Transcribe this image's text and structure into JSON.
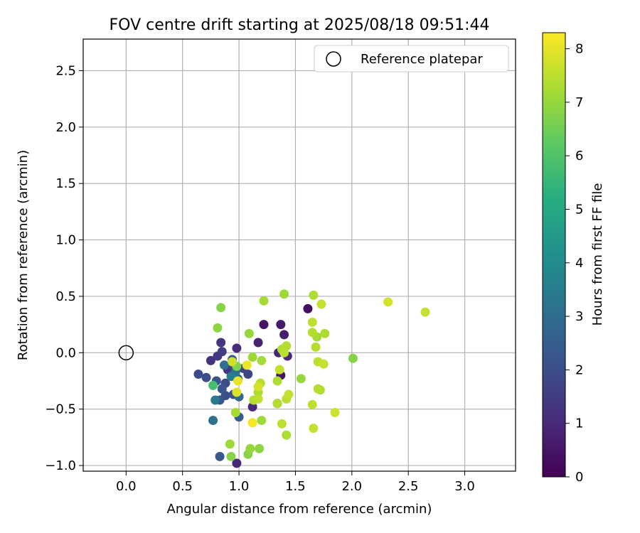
{
  "chart_data": {
    "type": "scatter",
    "title": "FOV centre drift starting at 2025/08/18 09:51:44",
    "xlabel": "Angular distance from reference (arcmin)",
    "ylabel": "Rotation from reference (arcmin)",
    "xlim": [
      -0.38,
      3.45
    ],
    "ylim": [
      -1.05,
      2.78
    ],
    "xticks": [
      0.0,
      0.5,
      1.0,
      1.5,
      2.0,
      2.5,
      3.0
    ],
    "xtick_labels": [
      "0.0",
      "0.5",
      "1.0",
      "1.5",
      "2.0",
      "2.5",
      "3.0"
    ],
    "yticks": [
      -1.0,
      -0.5,
      0.0,
      0.5,
      1.0,
      1.5,
      2.0,
      2.5
    ],
    "ytick_labels": [
      "−1.0",
      "−0.5",
      "0.0",
      "0.5",
      "1.0",
      "1.5",
      "2.0",
      "2.5"
    ],
    "grid": true,
    "legend": {
      "placement": "top-right",
      "entries": [
        {
          "label": "Reference platepar",
          "marker": "open-circle"
        }
      ]
    },
    "reference_point": {
      "x": 0.0,
      "y": 0.0
    },
    "colorbar": {
      "label": "Hours from first FF file",
      "colormap": "viridis",
      "range": [
        0,
        8.3
      ],
      "ticks": [
        0,
        1,
        2,
        3,
        4,
        5,
        6,
        7,
        8
      ],
      "tick_labels": [
        "0",
        "1",
        "2",
        "3",
        "4",
        "5",
        "6",
        "7",
        "8"
      ]
    },
    "points": [
      {
        "x": 1.61,
        "y": 0.39,
        "hours": 0.3
      },
      {
        "x": 1.22,
        "y": 0.25,
        "hours": 0.5
      },
      {
        "x": 1.37,
        "y": 0.25,
        "hours": 0.6
      },
      {
        "x": 1.4,
        "y": 0.16,
        "hours": 0.7
      },
      {
        "x": 1.17,
        "y": 0.09,
        "hours": 0.8
      },
      {
        "x": 1.35,
        "y": 0.0,
        "hours": 0.9
      },
      {
        "x": 1.43,
        "y": -0.03,
        "hours": 1.0
      },
      {
        "x": 1.37,
        "y": -0.2,
        "hours": 0.5
      },
      {
        "x": 1.34,
        "y": -0.45,
        "hours": 0.6
      },
      {
        "x": 0.98,
        "y": -0.98,
        "hours": 0.9
      },
      {
        "x": 1.12,
        "y": -0.48,
        "hours": 1.0
      },
      {
        "x": 0.98,
        "y": 0.04,
        "hours": 1.1
      },
      {
        "x": 0.84,
        "y": 0.09,
        "hours": 1.3
      },
      {
        "x": 0.85,
        "y": 0.01,
        "hours": 1.5
      },
      {
        "x": 0.81,
        "y": -0.03,
        "hours": 1.4
      },
      {
        "x": 0.75,
        "y": -0.07,
        "hours": 1.2
      },
      {
        "x": 0.9,
        "y": -0.15,
        "hours": 1.3
      },
      {
        "x": 0.95,
        "y": -0.13,
        "hours": 1.6
      },
      {
        "x": 1.04,
        "y": -0.14,
        "hours": 1.7
      },
      {
        "x": 1.08,
        "y": -0.19,
        "hours": 1.8
      },
      {
        "x": 0.64,
        "y": -0.19,
        "hours": 1.9
      },
      {
        "x": 0.71,
        "y": -0.22,
        "hours": 2.0
      },
      {
        "x": 0.8,
        "y": -0.25,
        "hours": 2.1
      },
      {
        "x": 0.88,
        "y": -0.27,
        "hours": 1.9
      },
      {
        "x": 0.85,
        "y": -0.32,
        "hours": 2.2
      },
      {
        "x": 0.88,
        "y": -0.38,
        "hours": 2.0
      },
      {
        "x": 0.95,
        "y": -0.37,
        "hours": 2.1
      },
      {
        "x": 0.83,
        "y": -0.42,
        "hours": 2.3
      },
      {
        "x": 0.94,
        "y": -0.06,
        "hours": 2.4
      },
      {
        "x": 0.99,
        "y": -0.23,
        "hours": 2.6
      },
      {
        "x": 1.0,
        "y": -0.39,
        "hours": 2.8
      },
      {
        "x": 1.0,
        "y": -0.57,
        "hours": 2.5
      },
      {
        "x": 0.87,
        "y": -0.11,
        "hours": 3.0
      },
      {
        "x": 0.97,
        "y": -0.17,
        "hours": 3.2
      },
      {
        "x": 0.79,
        "y": -0.42,
        "hours": 3.3
      },
      {
        "x": 0.77,
        "y": -0.6,
        "hours": 3.1
      },
      {
        "x": 0.93,
        "y": -0.21,
        "hours": 3.5
      },
      {
        "x": 0.83,
        "y": -0.92,
        "hours": 2.3
      },
      {
        "x": 0.77,
        "y": -0.29,
        "hours": 5.8
      },
      {
        "x": 0.84,
        "y": 0.4,
        "hours": 6.8
      },
      {
        "x": 0.81,
        "y": 0.22,
        "hours": 6.9
      },
      {
        "x": 0.98,
        "y": -0.12,
        "hours": 6.7
      },
      {
        "x": 0.92,
        "y": -0.81,
        "hours": 7.1
      },
      {
        "x": 0.93,
        "y": -0.92,
        "hours": 6.8
      },
      {
        "x": 0.97,
        "y": -0.53,
        "hours": 7.2
      },
      {
        "x": 1.09,
        "y": 0.17,
        "hours": 7.0
      },
      {
        "x": 1.12,
        "y": -0.04,
        "hours": 7.1
      },
      {
        "x": 1.2,
        "y": -0.07,
        "hours": 7.2
      },
      {
        "x": 1.19,
        "y": -0.27,
        "hours": 7.4
      },
      {
        "x": 1.17,
        "y": -0.35,
        "hours": 7.3
      },
      {
        "x": 1.13,
        "y": -0.42,
        "hours": 7.4
      },
      {
        "x": 1.17,
        "y": -0.41,
        "hours": 7.5
      },
      {
        "x": 1.2,
        "y": -0.6,
        "hours": 7.1
      },
      {
        "x": 1.1,
        "y": -0.85,
        "hours": 7.0
      },
      {
        "x": 1.18,
        "y": -0.85,
        "hours": 6.9
      },
      {
        "x": 1.08,
        "y": -0.9,
        "hours": 6.8
      },
      {
        "x": 1.22,
        "y": 0.46,
        "hours": 7.2
      },
      {
        "x": 1.4,
        "y": 0.52,
        "hours": 7.1
      },
      {
        "x": 1.38,
        "y": 0.03,
        "hours": 7.3
      },
      {
        "x": 1.42,
        "y": 0.06,
        "hours": 7.4
      },
      {
        "x": 1.4,
        "y": 0.0,
        "hours": 7.5
      },
      {
        "x": 1.36,
        "y": -0.15,
        "hours": 7.6
      },
      {
        "x": 1.34,
        "y": -0.25,
        "hours": 7.3
      },
      {
        "x": 1.34,
        "y": -0.45,
        "hours": 7.4
      },
      {
        "x": 1.42,
        "y": -0.41,
        "hours": 7.5
      },
      {
        "x": 1.44,
        "y": -0.37,
        "hours": 7.6
      },
      {
        "x": 1.38,
        "y": -0.63,
        "hours": 7.5
      },
      {
        "x": 1.42,
        "y": -0.73,
        "hours": 7.3
      },
      {
        "x": 1.55,
        "y": -0.23,
        "hours": 7.0
      },
      {
        "x": 1.66,
        "y": 0.51,
        "hours": 7.3
      },
      {
        "x": 1.65,
        "y": 0.27,
        "hours": 7.5
      },
      {
        "x": 1.65,
        "y": 0.18,
        "hours": 7.4
      },
      {
        "x": 1.69,
        "y": 0.14,
        "hours": 7.2
      },
      {
        "x": 1.73,
        "y": 0.43,
        "hours": 7.6
      },
      {
        "x": 1.76,
        "y": 0.17,
        "hours": 7.3
      },
      {
        "x": 1.68,
        "y": 0.05,
        "hours": 7.4
      },
      {
        "x": 1.7,
        "y": -0.08,
        "hours": 7.5
      },
      {
        "x": 1.75,
        "y": -0.1,
        "hours": 7.6
      },
      {
        "x": 1.7,
        "y": -0.32,
        "hours": 7.4
      },
      {
        "x": 1.72,
        "y": -0.33,
        "hours": 7.3
      },
      {
        "x": 1.65,
        "y": -0.46,
        "hours": 7.5
      },
      {
        "x": 1.66,
        "y": -0.67,
        "hours": 7.6
      },
      {
        "x": 1.85,
        "y": -0.53,
        "hours": 7.7
      },
      {
        "x": 2.01,
        "y": -0.05,
        "hours": 6.8
      },
      {
        "x": 2.32,
        "y": 0.45,
        "hours": 7.8
      },
      {
        "x": 2.65,
        "y": 0.36,
        "hours": 7.6
      },
      {
        "x": 1.12,
        "y": -0.62,
        "hours": 8.2
      },
      {
        "x": 1.07,
        "y": -0.11,
        "hours": 8.1
      },
      {
        "x": 0.99,
        "y": -0.25,
        "hours": 8.0
      },
      {
        "x": 0.98,
        "y": -0.35,
        "hours": 7.9
      },
      {
        "x": 1.17,
        "y": -0.3,
        "hours": 7.8
      },
      {
        "x": 0.94,
        "y": -0.08,
        "hours": 7.7
      }
    ]
  }
}
